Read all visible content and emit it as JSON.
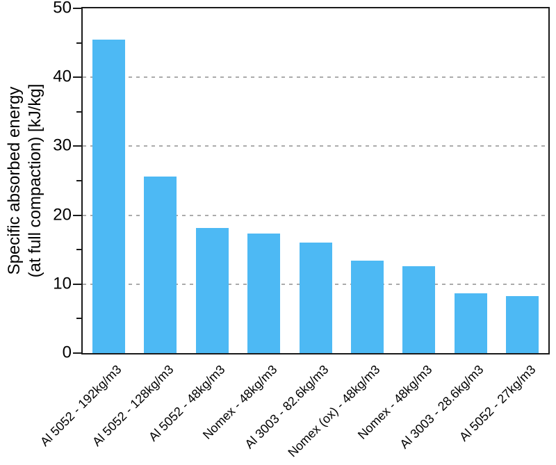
{
  "figure": {
    "background": "#ffffff"
  },
  "chart_data": {
    "type": "bar",
    "title": "",
    "ylabel_line1": "Specific absorbed energy",
    "ylabel_line2": "(at full compaction) [kJ/kg]",
    "xlabel": "",
    "categories": [
      "Al 5052 - 192kg/m3",
      "Al 5052 - 128kg/m3",
      "Al 5052 - 48kg/m3",
      "Nomex - 48kg/m3",
      "Al 3003 - 82.6kg/m3",
      "Nomex (ox) - 48kg/m3",
      "Nomex - 48kg/m3",
      "Al 3003 - 28.6kg/m3",
      "Al 5052 - 27kg/m3"
    ],
    "values": [
      45.5,
      25.6,
      18.1,
      17.3,
      16.0,
      13.4,
      12.6,
      8.7,
      8.3
    ],
    "ylim": [
      0,
      50
    ],
    "yticks": [
      0,
      10,
      20,
      30,
      40,
      50
    ],
    "minor_yticks": [
      5,
      15,
      25,
      35,
      45
    ],
    "gridline_values": [
      10,
      20,
      30,
      40
    ],
    "gridline_style": "dashed",
    "gridline_color": "#ababab",
    "bar_color": "#4db9f4",
    "axis_color": "#1a1a1a",
    "legend": "none",
    "x_tick_rotation_deg": 45
  }
}
